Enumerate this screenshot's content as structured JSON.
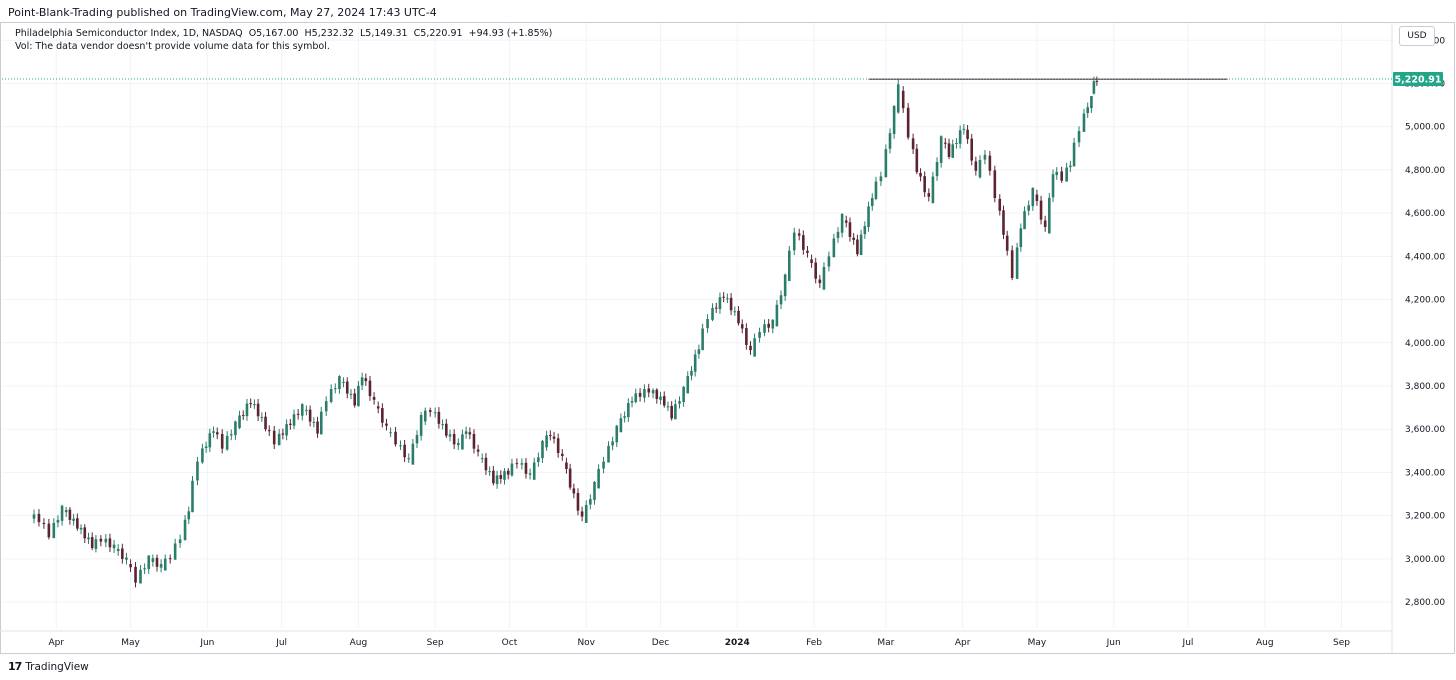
{
  "header": {
    "publisher_line": "Point-Blank-Trading published on TradingView.com, May 27, 2024 17:43 UTC-4"
  },
  "legend": {
    "symbol": "Philadelphia Semiconductor Index, 1D, NASDAQ",
    "open": "O5,167.00",
    "high": "H5,232.32",
    "low": "L5,149.31",
    "close": "C5,220.91",
    "change": "+94.93 (+1.85%)",
    "volume_note": "Vol: The data vendor doesn't provide volume data for this symbol."
  },
  "currency": "USD",
  "footer": {
    "brand": "TradingView",
    "logo_glyph": "17"
  },
  "colors": {
    "up": "#2a7d6a",
    "down": "#5b2430",
    "resistance_line": "#5c1a3a",
    "last_price_bg": "#22a688",
    "grid": "#f0f3fa"
  },
  "chart_data": {
    "type": "candlestick",
    "title": "Philadelphia Semiconductor Index",
    "interval": "1D",
    "exchange": "NASDAQ",
    "currency": "USD",
    "ylim": [
      2680,
      5480
    ],
    "y_ticks": [
      "2,800.00",
      "3,000.00",
      "3,200.00",
      "3,400.00",
      "3,600.00",
      "3,800.00",
      "4,000.00",
      "4,200.00",
      "4,400.00",
      "4,600.00",
      "4,800.00",
      "5,000.00",
      "5,200.00",
      "5,400.00"
    ],
    "y_tick_values": [
      2800,
      3000,
      3200,
      3400,
      3600,
      3800,
      4000,
      4200,
      4400,
      4600,
      4800,
      5000,
      5200,
      5400
    ],
    "x_tick_labels": [
      "Apr",
      "May",
      "Jun",
      "Jul",
      "Aug",
      "Sep",
      "Oct",
      "Nov",
      "Dec",
      "2024",
      "Feb",
      "Mar",
      "Apr",
      "May",
      "Jun",
      "Jul",
      "Aug",
      "Sep"
    ],
    "x_tick_dates": [
      "2023-04-01",
      "2023-05-01",
      "2023-06-01",
      "2023-07-01",
      "2023-08-01",
      "2023-09-01",
      "2023-10-01",
      "2023-11-01",
      "2023-12-01",
      "2024-01-01",
      "2024-02-01",
      "2024-03-01",
      "2024-04-01",
      "2024-05-01",
      "2024-06-01",
      "2024-07-01",
      "2024-08-01",
      "2024-09-01"
    ],
    "x_range": [
      "2023-03-23",
      "2024-09-23"
    ],
    "last_price": 5220.91,
    "last_price_label": "5,220.91",
    "resistance_level": {
      "value": 5220,
      "from": "2024-02-23",
      "to": "2024-07-17"
    },
    "candles": [
      {
        "d": "2023-03-23",
        "o": 3200,
        "h": 3230,
        "l": 3150,
        "c": 3180
      },
      {
        "d": "2023-03-27",
        "o": 3180,
        "h": 3190,
        "l": 3090,
        "c": 3110
      },
      {
        "d": "2023-03-31",
        "o": 3110,
        "h": 3250,
        "l": 3100,
        "c": 3230
      },
      {
        "d": "2023-04-05",
        "o": 3230,
        "h": 3240,
        "l": 3130,
        "c": 3150
      },
      {
        "d": "2023-04-11",
        "o": 3150,
        "h": 3160,
        "l": 3040,
        "c": 3060
      },
      {
        "d": "2023-04-17",
        "o": 3060,
        "h": 3110,
        "l": 3030,
        "c": 3090
      },
      {
        "d": "2023-04-21",
        "o": 3090,
        "h": 3120,
        "l": 3020,
        "c": 3050
      },
      {
        "d": "2023-04-26",
        "o": 3050,
        "h": 3070,
        "l": 2960,
        "c": 2990
      },
      {
        "d": "2023-05-01",
        "o": 2990,
        "h": 3010,
        "l": 2860,
        "c": 2900
      },
      {
        "d": "2023-05-05",
        "o": 2900,
        "h": 3010,
        "l": 2890,
        "c": 3000
      },
      {
        "d": "2023-05-10",
        "o": 3000,
        "h": 3020,
        "l": 2930,
        "c": 2960
      },
      {
        "d": "2023-05-15",
        "o": 2960,
        "h": 3020,
        "l": 2950,
        "c": 3010
      },
      {
        "d": "2023-05-19",
        "o": 3010,
        "h": 3120,
        "l": 3000,
        "c": 3100
      },
      {
        "d": "2023-05-23",
        "o": 3100,
        "h": 3250,
        "l": 3090,
        "c": 3230
      },
      {
        "d": "2023-05-26",
        "o": 3230,
        "h": 3480,
        "l": 3220,
        "c": 3460
      },
      {
        "d": "2023-05-30",
        "o": 3460,
        "h": 3650,
        "l": 3440,
        "c": 3600
      },
      {
        "d": "2023-06-05",
        "o": 3600,
        "h": 3610,
        "l": 3480,
        "c": 3520
      },
      {
        "d": "2023-06-09",
        "o": 3520,
        "h": 3640,
        "l": 3500,
        "c": 3620
      },
      {
        "d": "2023-06-14",
        "o": 3620,
        "h": 3760,
        "l": 3600,
        "c": 3730
      },
      {
        "d": "2023-06-20",
        "o": 3730,
        "h": 3740,
        "l": 3590,
        "c": 3610
      },
      {
        "d": "2023-06-26",
        "o": 3610,
        "h": 3650,
        "l": 3500,
        "c": 3540
      },
      {
        "d": "2023-06-30",
        "o": 3540,
        "h": 3650,
        "l": 3530,
        "c": 3630
      },
      {
        "d": "2023-07-06",
        "o": 3630,
        "h": 3720,
        "l": 3600,
        "c": 3700
      },
      {
        "d": "2023-07-11",
        "o": 3700,
        "h": 3710,
        "l": 3560,
        "c": 3590
      },
      {
        "d": "2023-07-17",
        "o": 3590,
        "h": 3760,
        "l": 3580,
        "c": 3740
      },
      {
        "d": "2023-07-21",
        "o": 3740,
        "h": 3850,
        "l": 3720,
        "c": 3830
      },
      {
        "d": "2023-07-26",
        "o": 3830,
        "h": 3840,
        "l": 3700,
        "c": 3720
      },
      {
        "d": "2023-08-01",
        "o": 3720,
        "h": 3870,
        "l": 3710,
        "c": 3850
      },
      {
        "d": "2023-08-04",
        "o": 3850,
        "h": 3860,
        "l": 3700,
        "c": 3720
      },
      {
        "d": "2023-08-09",
        "o": 3720,
        "h": 3730,
        "l": 3580,
        "c": 3600
      },
      {
        "d": "2023-08-14",
        "o": 3600,
        "h": 3620,
        "l": 3520,
        "c": 3540
      },
      {
        "d": "2023-08-18",
        "o": 3540,
        "h": 3560,
        "l": 3420,
        "c": 3450
      },
      {
        "d": "2023-08-23",
        "o": 3450,
        "h": 3680,
        "l": 3440,
        "c": 3650
      },
      {
        "d": "2023-08-28",
        "o": 3650,
        "h": 3700,
        "l": 3620,
        "c": 3690
      },
      {
        "d": "2023-09-01",
        "o": 3690,
        "h": 3710,
        "l": 3560,
        "c": 3580
      },
      {
        "d": "2023-09-07",
        "o": 3580,
        "h": 3600,
        "l": 3500,
        "c": 3520
      },
      {
        "d": "2023-09-12",
        "o": 3520,
        "h": 3620,
        "l": 3510,
        "c": 3600
      },
      {
        "d": "2023-09-15",
        "o": 3600,
        "h": 3610,
        "l": 3460,
        "c": 3480
      },
      {
        "d": "2023-09-20",
        "o": 3480,
        "h": 3490,
        "l": 3340,
        "c": 3360
      },
      {
        "d": "2023-09-26",
        "o": 3360,
        "h": 3420,
        "l": 3320,
        "c": 3400
      },
      {
        "d": "2023-10-02",
        "o": 3400,
        "h": 3470,
        "l": 3380,
        "c": 3450
      },
      {
        "d": "2023-10-06",
        "o": 3450,
        "h": 3470,
        "l": 3360,
        "c": 3380
      },
      {
        "d": "2023-10-11",
        "o": 3380,
        "h": 3550,
        "l": 3370,
        "c": 3530
      },
      {
        "d": "2023-10-16",
        "o": 3530,
        "h": 3600,
        "l": 3500,
        "c": 3580
      },
      {
        "d": "2023-10-19",
        "o": 3580,
        "h": 3590,
        "l": 3440,
        "c": 3460
      },
      {
        "d": "2023-10-24",
        "o": 3460,
        "h": 3470,
        "l": 3320,
        "c": 3340
      },
      {
        "d": "2023-10-27",
        "o": 3340,
        "h": 3350,
        "l": 3150,
        "c": 3180
      },
      {
        "d": "2023-11-01",
        "o": 3180,
        "h": 3360,
        "l": 3170,
        "c": 3340
      },
      {
        "d": "2023-11-06",
        "o": 3340,
        "h": 3480,
        "l": 3330,
        "c": 3460
      },
      {
        "d": "2023-11-10",
        "o": 3460,
        "h": 3620,
        "l": 3450,
        "c": 3600
      },
      {
        "d": "2023-11-15",
        "o": 3600,
        "h": 3760,
        "l": 3590,
        "c": 3740
      },
      {
        "d": "2023-11-21",
        "o": 3740,
        "h": 3810,
        "l": 3720,
        "c": 3780
      },
      {
        "d": "2023-11-28",
        "o": 3780,
        "h": 3790,
        "l": 3700,
        "c": 3720
      },
      {
        "d": "2023-12-04",
        "o": 3720,
        "h": 3730,
        "l": 3640,
        "c": 3660
      },
      {
        "d": "2023-12-07",
        "o": 3660,
        "h": 3800,
        "l": 3650,
        "c": 3780
      },
      {
        "d": "2023-12-12",
        "o": 3780,
        "h": 4000,
        "l": 3770,
        "c": 3980
      },
      {
        "d": "2023-12-18",
        "o": 3980,
        "h": 4150,
        "l": 3970,
        "c": 4120
      },
      {
        "d": "2023-12-22",
        "o": 4120,
        "h": 4240,
        "l": 4100,
        "c": 4220
      },
      {
        "d": "2023-12-28",
        "o": 4220,
        "h": 4230,
        "l": 4080,
        "c": 4100
      },
      {
        "d": "2024-01-03",
        "o": 4100,
        "h": 4110,
        "l": 3900,
        "c": 3950
      },
      {
        "d": "2024-01-08",
        "o": 3950,
        "h": 4070,
        "l": 3940,
        "c": 4060
      },
      {
        "d": "2024-01-12",
        "o": 4060,
        "h": 4110,
        "l": 4030,
        "c": 4090
      },
      {
        "d": "2024-01-17",
        "o": 4090,
        "h": 4320,
        "l": 4080,
        "c": 4300
      },
      {
        "d": "2024-01-22",
        "o": 4300,
        "h": 4560,
        "l": 4290,
        "c": 4520
      },
      {
        "d": "2024-01-26",
        "o": 4520,
        "h": 4530,
        "l": 4370,
        "c": 4400
      },
      {
        "d": "2024-01-31",
        "o": 4400,
        "h": 4410,
        "l": 4220,
        "c": 4260
      },
      {
        "d": "2024-02-05",
        "o": 4260,
        "h": 4430,
        "l": 4250,
        "c": 4410
      },
      {
        "d": "2024-02-09",
        "o": 4410,
        "h": 4600,
        "l": 4400,
        "c": 4580
      },
      {
        "d": "2024-02-14",
        "o": 4580,
        "h": 4600,
        "l": 4400,
        "c": 4420
      },
      {
        "d": "2024-02-20",
        "o": 4420,
        "h": 4700,
        "l": 4410,
        "c": 4680
      },
      {
        "d": "2024-02-26",
        "o": 4680,
        "h": 4800,
        "l": 4660,
        "c": 4780
      },
      {
        "d": "2024-03-01",
        "o": 4780,
        "h": 5100,
        "l": 4770,
        "c": 5080
      },
      {
        "d": "2024-03-06",
        "o": 5080,
        "h": 5220,
        "l": 5060,
        "c": 5180
      },
      {
        "d": "2024-03-08",
        "o": 5180,
        "h": 5190,
        "l": 4940,
        "c": 4960
      },
      {
        "d": "2024-03-12",
        "o": 4960,
        "h": 4980,
        "l": 4780,
        "c": 4800
      },
      {
        "d": "2024-03-15",
        "o": 4800,
        "h": 4810,
        "l": 4620,
        "c": 4660
      },
      {
        "d": "2024-03-20",
        "o": 4660,
        "h": 4960,
        "l": 4650,
        "c": 4940
      },
      {
        "d": "2024-03-25",
        "o": 4940,
        "h": 4950,
        "l": 4850,
        "c": 4870
      },
      {
        "d": "2024-03-28",
        "o": 4870,
        "h": 5020,
        "l": 4860,
        "c": 5000
      },
      {
        "d": "2024-04-03",
        "o": 5000,
        "h": 5010,
        "l": 4760,
        "c": 4780
      },
      {
        "d": "2024-04-08",
        "o": 4780,
        "h": 4900,
        "l": 4760,
        "c": 4880
      },
      {
        "d": "2024-04-12",
        "o": 4880,
        "h": 4890,
        "l": 4650,
        "c": 4680
      },
      {
        "d": "2024-04-16",
        "o": 4680,
        "h": 4690,
        "l": 4480,
        "c": 4510
      },
      {
        "d": "2024-04-19",
        "o": 4510,
        "h": 4520,
        "l": 4290,
        "c": 4310
      },
      {
        "d": "2024-04-23",
        "o": 4310,
        "h": 4560,
        "l": 4300,
        "c": 4540
      },
      {
        "d": "2024-04-26",
        "o": 4540,
        "h": 4720,
        "l": 4530,
        "c": 4700
      },
      {
        "d": "2024-05-01",
        "o": 4700,
        "h": 4710,
        "l": 4480,
        "c": 4520
      },
      {
        "d": "2024-05-06",
        "o": 4520,
        "h": 4810,
        "l": 4510,
        "c": 4790
      },
      {
        "d": "2024-05-09",
        "o": 4790,
        "h": 4830,
        "l": 4740,
        "c": 4760
      },
      {
        "d": "2024-05-13",
        "o": 4760,
        "h": 4850,
        "l": 4750,
        "c": 4830
      },
      {
        "d": "2024-05-16",
        "o": 4830,
        "h": 5010,
        "l": 4820,
        "c": 4990
      },
      {
        "d": "2024-05-20",
        "o": 4990,
        "h": 5120,
        "l": 4980,
        "c": 5100
      },
      {
        "d": "2024-05-23",
        "o": 5100,
        "h": 5140,
        "l": 5040,
        "c": 5126
      },
      {
        "d": "2024-05-24",
        "o": 5167,
        "h": 5232.32,
        "l": 5149.31,
        "c": 5220.91
      }
    ]
  }
}
